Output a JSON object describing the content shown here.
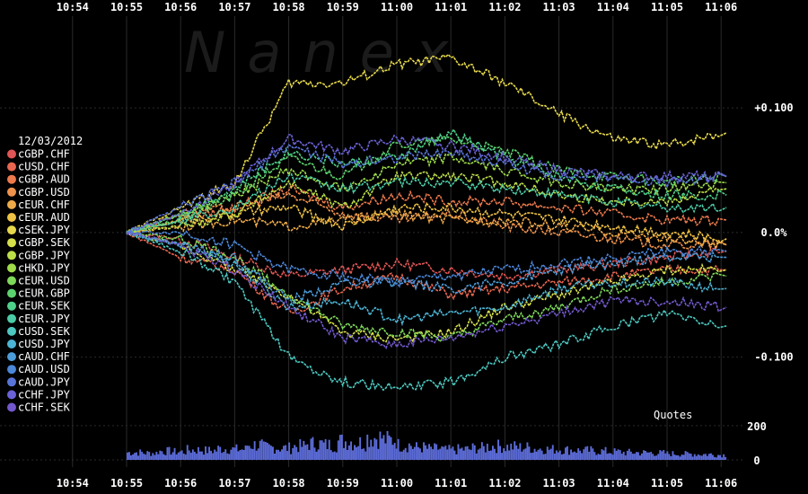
{
  "chart_data": {
    "type": "line",
    "watermark": "Nanex",
    "date_label": "12/03/2012",
    "x_ticks": [
      "10:54",
      "10:55",
      "10:56",
      "10:57",
      "10:58",
      "10:59",
      "11:00",
      "11:01",
      "11:02",
      "11:03",
      "11:04",
      "11:05",
      "11:06"
    ],
    "y_ticks": [
      {
        "label": "+0.100",
        "value": 0.1
      },
      {
        "label": "0.0%",
        "value": 0.0
      },
      {
        "label": "-0.100",
        "value": -0.1
      }
    ],
    "ylim": [
      -0.145,
      0.165
    ],
    "x_start": "10:55",
    "grid": true,
    "legend_position": "left",
    "series": [
      {
        "name": "cGBP.CHF",
        "color": "#e05555",
        "points": [
          [
            "10:55",
            0
          ],
          [
            "10:56",
            -0.005
          ],
          [
            "10:57",
            -0.02
          ],
          [
            "10:58",
            -0.035
          ],
          [
            "10:59",
            -0.03
          ],
          [
            "11:00",
            -0.025
          ],
          [
            "11:01",
            -0.03
          ],
          [
            "11:02",
            -0.035
          ],
          [
            "11:03",
            -0.03
          ],
          [
            "11:04",
            -0.025
          ],
          [
            "11:05",
            -0.02
          ],
          [
            "11:06",
            -0.015
          ]
        ]
      },
      {
        "name": "cUSD.CHF",
        "color": "#e86650",
        "points": [
          [
            "10:55",
            0
          ],
          [
            "10:56",
            -0.02
          ],
          [
            "10:57",
            -0.03
          ],
          [
            "10:58",
            -0.065
          ],
          [
            "10:59",
            -0.045
          ],
          [
            "11:00",
            -0.035
          ],
          [
            "11:01",
            -0.05
          ],
          [
            "11:02",
            -0.045
          ],
          [
            "11:03",
            -0.04
          ],
          [
            "11:04",
            -0.035
          ],
          [
            "11:05",
            -0.03
          ],
          [
            "11:06",
            -0.03
          ]
        ]
      },
      {
        "name": "cGBP.AUD",
        "color": "#ec7a4c",
        "points": [
          [
            "10:55",
            0
          ],
          [
            "10:56",
            0.01
          ],
          [
            "10:57",
            0.02
          ],
          [
            "10:58",
            0.035
          ],
          [
            "10:59",
            0.02
          ],
          [
            "11:00",
            0.03
          ],
          [
            "11:01",
            0.025
          ],
          [
            "11:02",
            0.025
          ],
          [
            "11:03",
            0.02
          ],
          [
            "11:04",
            0.015
          ],
          [
            "11:05",
            0.01
          ],
          [
            "11:06",
            0.01
          ]
        ]
      },
      {
        "name": "cGBP.USD",
        "color": "#ee924c",
        "points": [
          [
            "10:55",
            0
          ],
          [
            "10:56",
            0.015
          ],
          [
            "10:57",
            0.02
          ],
          [
            "10:58",
            0.03
          ],
          [
            "10:59",
            0.015
          ],
          [
            "11:00",
            0.01
          ],
          [
            "11:01",
            0.015
          ],
          [
            "11:02",
            0.005
          ],
          [
            "11:03",
            0
          ],
          [
            "11:04",
            -0.005
          ],
          [
            "11:05",
            -0.01
          ],
          [
            "11:06",
            -0.01
          ]
        ]
      },
      {
        "name": "cEUR.CHF",
        "color": "#eeaa48",
        "points": [
          [
            "10:55",
            0
          ],
          [
            "10:56",
            0.005
          ],
          [
            "10:57",
            0.01
          ],
          [
            "10:58",
            0.005
          ],
          [
            "10:59",
            0.01
          ],
          [
            "11:00",
            0.015
          ],
          [
            "11:01",
            0.01
          ],
          [
            "11:02",
            0.01
          ],
          [
            "11:03",
            0.005
          ],
          [
            "11:04",
            0
          ],
          [
            "11:05",
            -0.005
          ],
          [
            "11:06",
            -0.01
          ]
        ]
      },
      {
        "name": "cEUR.AUD",
        "color": "#eec244",
        "points": [
          [
            "10:55",
            0
          ],
          [
            "10:56",
            0.01
          ],
          [
            "10:57",
            0.015
          ],
          [
            "10:58",
            0.02
          ],
          [
            "10:59",
            0.005
          ],
          [
            "11:00",
            0.02
          ],
          [
            "11:01",
            0.02
          ],
          [
            "11:02",
            0.015
          ],
          [
            "11:03",
            0.01
          ],
          [
            "11:04",
            0.005
          ],
          [
            "11:05",
            0
          ],
          [
            "11:06",
            -0.005
          ]
        ]
      },
      {
        "name": "cSEK.JPY",
        "color": "#e6d84a",
        "points": [
          [
            "10:55",
            0
          ],
          [
            "10:56",
            0.02
          ],
          [
            "10:57",
            0.04
          ],
          [
            "10:58",
            0.12
          ],
          [
            "10:59",
            0.12
          ],
          [
            "11:00",
            0.135
          ],
          [
            "11:01",
            0.14
          ],
          [
            "11:02",
            0.12
          ],
          [
            "11:03",
            0.095
          ],
          [
            "11:04",
            0.075
          ],
          [
            "11:05",
            0.07
          ],
          [
            "11:06",
            0.08
          ]
        ]
      },
      {
        "name": "cGBP.SEK",
        "color": "#d6e04a",
        "points": [
          [
            "10:55",
            0
          ],
          [
            "10:56",
            -0.01
          ],
          [
            "10:57",
            -0.03
          ],
          [
            "10:58",
            -0.05
          ],
          [
            "10:59",
            -0.08
          ],
          [
            "11:00",
            -0.085
          ],
          [
            "11:01",
            -0.08
          ],
          [
            "11:02",
            -0.06
          ],
          [
            "11:03",
            -0.05
          ],
          [
            "11:04",
            -0.04
          ],
          [
            "11:05",
            -0.03
          ],
          [
            "11:06",
            -0.03
          ]
        ]
      },
      {
        "name": "cGBP.JPY",
        "color": "#bcde48",
        "points": [
          [
            "10:55",
            0
          ],
          [
            "10:56",
            0.005
          ],
          [
            "10:57",
            0.015
          ],
          [
            "10:58",
            0.04
          ],
          [
            "10:59",
            0.02
          ],
          [
            "11:00",
            0.045
          ],
          [
            "11:01",
            0.045
          ],
          [
            "11:02",
            0.04
          ],
          [
            "11:03",
            0.03
          ],
          [
            "11:04",
            0.025
          ],
          [
            "11:05",
            0.025
          ],
          [
            "11:06",
            0.035
          ]
        ]
      },
      {
        "name": "cHKD.JPY",
        "color": "#9edc4a",
        "points": [
          [
            "10:55",
            0
          ],
          [
            "10:56",
            0.015
          ],
          [
            "10:57",
            0.03
          ],
          [
            "10:58",
            0.05
          ],
          [
            "10:59",
            0.035
          ],
          [
            "11:00",
            0.055
          ],
          [
            "11:01",
            0.06
          ],
          [
            "11:02",
            0.05
          ],
          [
            "11:03",
            0.04
          ],
          [
            "11:04",
            0.035
          ],
          [
            "11:05",
            0.035
          ],
          [
            "11:06",
            0.04
          ]
        ]
      },
      {
        "name": "cEUR.USD",
        "color": "#7ed85a",
        "points": [
          [
            "10:55",
            0
          ],
          [
            "10:56",
            -0.005
          ],
          [
            "10:57",
            -0.02
          ],
          [
            "10:58",
            -0.05
          ],
          [
            "10:59",
            -0.075
          ],
          [
            "11:00",
            -0.08
          ],
          [
            "11:01",
            -0.085
          ],
          [
            "11:02",
            -0.07
          ],
          [
            "11:03",
            -0.06
          ],
          [
            "11:04",
            -0.045
          ],
          [
            "11:05",
            -0.04
          ],
          [
            "11:06",
            -0.035
          ]
        ]
      },
      {
        "name": "cEUR.GBP",
        "color": "#5cd26e",
        "points": [
          [
            "10:55",
            0
          ],
          [
            "10:56",
            0.01
          ],
          [
            "10:57",
            0.03
          ],
          [
            "10:58",
            0.06
          ],
          [
            "10:59",
            0.045
          ],
          [
            "11:00",
            0.07
          ],
          [
            "11:01",
            0.075
          ],
          [
            "11:02",
            0.065
          ],
          [
            "11:03",
            0.05
          ],
          [
            "11:04",
            0.045
          ],
          [
            "11:05",
            0.04
          ],
          [
            "11:06",
            0.045
          ]
        ]
      },
      {
        "name": "cEUR.SEK",
        "color": "#4ed08a",
        "points": [
          [
            "10:55",
            0
          ],
          [
            "10:56",
            0.015
          ],
          [
            "10:57",
            0.035
          ],
          [
            "10:58",
            0.065
          ],
          [
            "10:59",
            0.055
          ],
          [
            "11:00",
            0.06
          ],
          [
            "11:01",
            0.08
          ],
          [
            "11:02",
            0.06
          ],
          [
            "11:03",
            0.045
          ],
          [
            "11:04",
            0.035
          ],
          [
            "11:05",
            0.03
          ],
          [
            "11:06",
            0.03
          ]
        ]
      },
      {
        "name": "cEUR.JPY",
        "color": "#4ccca6",
        "points": [
          [
            "10:55",
            0
          ],
          [
            "10:56",
            0.01
          ],
          [
            "10:57",
            0.02
          ],
          [
            "10:58",
            0.045
          ],
          [
            "10:59",
            0.035
          ],
          [
            "11:00",
            0.04
          ],
          [
            "11:01",
            0.04
          ],
          [
            "11:02",
            0.035
          ],
          [
            "11:03",
            0.03
          ],
          [
            "11:04",
            0.025
          ],
          [
            "11:05",
            0.02
          ],
          [
            "11:06",
            0.02
          ]
        ]
      },
      {
        "name": "cUSD.SEK",
        "color": "#4cc8c0",
        "points": [
          [
            "10:55",
            0
          ],
          [
            "10:56",
            -0.015
          ],
          [
            "10:57",
            -0.04
          ],
          [
            "10:58",
            -0.1
          ],
          [
            "10:59",
            -0.12
          ],
          [
            "11:00",
            -0.125
          ],
          [
            "11:01",
            -0.12
          ],
          [
            "11:02",
            -0.1
          ],
          [
            "11:03",
            -0.09
          ],
          [
            "11:04",
            -0.075
          ],
          [
            "11:05",
            -0.065
          ],
          [
            "11:06",
            -0.075
          ]
        ]
      },
      {
        "name": "cUSD.JPY",
        "color": "#4cb4d4",
        "points": [
          [
            "10:55",
            0
          ],
          [
            "10:56",
            -0.01
          ],
          [
            "10:57",
            -0.025
          ],
          [
            "10:58",
            -0.06
          ],
          [
            "10:59",
            -0.055
          ],
          [
            "11:00",
            -0.07
          ],
          [
            "11:01",
            -0.065
          ],
          [
            "11:02",
            -0.06
          ],
          [
            "11:03",
            -0.045
          ],
          [
            "11:04",
            -0.04
          ],
          [
            "11:05",
            -0.04
          ],
          [
            "11:06",
            -0.045
          ]
        ]
      },
      {
        "name": "cAUD.CHF",
        "color": "#4c9cd8",
        "points": [
          [
            "10:55",
            0
          ],
          [
            "10:56",
            -0.01
          ],
          [
            "10:57",
            -0.02
          ],
          [
            "10:58",
            -0.055
          ],
          [
            "10:59",
            -0.04
          ],
          [
            "11:00",
            -0.04
          ],
          [
            "11:01",
            -0.045
          ],
          [
            "11:02",
            -0.04
          ],
          [
            "11:03",
            -0.03
          ],
          [
            "11:04",
            -0.025
          ],
          [
            "11:05",
            -0.02
          ],
          [
            "11:06",
            -0.02
          ]
        ]
      },
      {
        "name": "cAUD.USD",
        "color": "#4c86d8",
        "points": [
          [
            "10:55",
            0
          ],
          [
            "10:56",
            0
          ],
          [
            "10:57",
            -0.01
          ],
          [
            "10:58",
            -0.03
          ],
          [
            "10:59",
            -0.035
          ],
          [
            "11:00",
            -0.04
          ],
          [
            "11:01",
            -0.035
          ],
          [
            "11:02",
            -0.03
          ],
          [
            "11:03",
            -0.025
          ],
          [
            "11:04",
            -0.02
          ],
          [
            "11:05",
            -0.015
          ],
          [
            "11:06",
            -0.015
          ]
        ]
      },
      {
        "name": "cAUD.JPY",
        "color": "#5874d8",
        "points": [
          [
            "10:55",
            0
          ],
          [
            "10:56",
            0.02
          ],
          [
            "10:57",
            0.04
          ],
          [
            "10:58",
            0.07
          ],
          [
            "10:59",
            0.055
          ],
          [
            "11:00",
            0.06
          ],
          [
            "11:01",
            0.065
          ],
          [
            "11:02",
            0.055
          ],
          [
            "11:03",
            0.045
          ],
          [
            "11:04",
            0.045
          ],
          [
            "11:05",
            0.04
          ],
          [
            "11:06",
            0.045
          ]
        ]
      },
      {
        "name": "cCHF.JPY",
        "color": "#6a62d6",
        "points": [
          [
            "10:55",
            0
          ],
          [
            "10:56",
            0.015
          ],
          [
            "10:57",
            0.04
          ],
          [
            "10:58",
            0.075
          ],
          [
            "10:59",
            0.065
          ],
          [
            "11:00",
            0.075
          ],
          [
            "11:01",
            0.07
          ],
          [
            "11:02",
            0.06
          ],
          [
            "11:03",
            0.05
          ],
          [
            "11:04",
            0.045
          ],
          [
            "11:05",
            0.045
          ],
          [
            "11:06",
            0.045
          ]
        ]
      },
      {
        "name": "cCHF.SEK",
        "color": "#7258cc",
        "points": [
          [
            "10:55",
            0
          ],
          [
            "10:56",
            -0.01
          ],
          [
            "10:57",
            -0.03
          ],
          [
            "10:58",
            -0.06
          ],
          [
            "10:59",
            -0.085
          ],
          [
            "11:00",
            -0.09
          ],
          [
            "11:01",
            -0.085
          ],
          [
            "11:02",
            -0.075
          ],
          [
            "11:03",
            -0.065
          ],
          [
            "11:04",
            -0.055
          ],
          [
            "11:05",
            -0.055
          ],
          [
            "11:06",
            -0.06
          ]
        ]
      }
    ],
    "volume": {
      "label": "Quotes",
      "color": "#5c6cd8",
      "y_ticks": [
        {
          "label": "200",
          "value": 200
        },
        {
          "label": "0",
          "value": 0
        }
      ],
      "ylim": [
        0,
        220
      ],
      "values": [
        60,
        55,
        70,
        65,
        80,
        75,
        90,
        85,
        120,
        100,
        95,
        110,
        130,
        120,
        150,
        140,
        180,
        160,
        120,
        100,
        90,
        80,
        85,
        95,
        110,
        105,
        100,
        90,
        85,
        80,
        75,
        70,
        65,
        60,
        58,
        55,
        50,
        48,
        45,
        40
      ]
    }
  }
}
